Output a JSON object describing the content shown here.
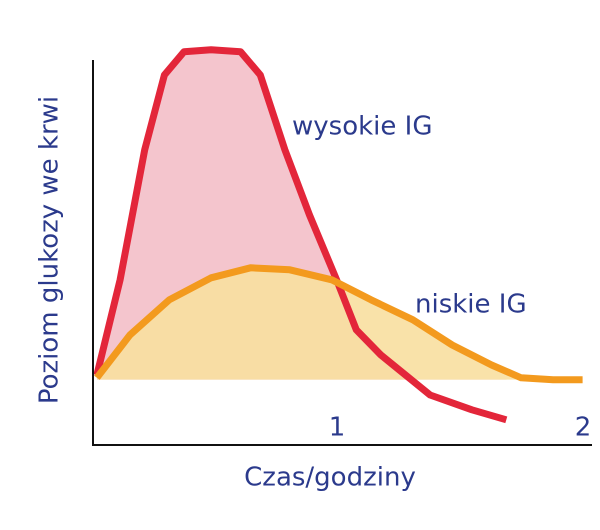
{
  "chart_data": {
    "type": "area",
    "xlabel": "Czas/godziny",
    "ylabel": "Poziom glukozy we krwi",
    "xlim": [
      0,
      2.02
    ],
    "xticks": [
      1,
      2
    ],
    "ylim": [
      0,
      100
    ],
    "baseline": 16.3,
    "series": [
      {
        "name": "wysokie IG",
        "color": "#e3263a",
        "fill": "#f4c5cd",
        "x": [
          0.016,
          0.11,
          0.21,
          0.29,
          0.37,
          0.48,
          0.6,
          0.68,
          0.78,
          0.88,
          0.99,
          1.07,
          1.17,
          1.27,
          1.37,
          1.54,
          1.68
        ],
        "values": [
          17.5,
          41.3,
          73.8,
          92.5,
          98.3,
          98.8,
          98.3,
          92.5,
          73.8,
          57.5,
          41.3,
          28.8,
          22.5,
          17.5,
          12.5,
          8.8,
          6.3
        ]
      },
      {
        "name": "niskie IG",
        "color": "#f39a1e",
        "fill": "#f8dfa0",
        "x": [
          0.016,
          0.15,
          0.31,
          0.48,
          0.64,
          0.8,
          0.97,
          1.13,
          1.3,
          1.46,
          1.62,
          1.74,
          1.87,
          1.99
        ],
        "values": [
          16.8,
          27.5,
          36.3,
          41.8,
          44.3,
          43.8,
          41.3,
          36.3,
          31.3,
          25,
          20,
          16.8,
          16.3,
          16.3
        ]
      }
    ]
  }
}
